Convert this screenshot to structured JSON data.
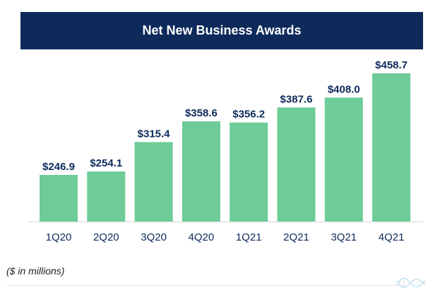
{
  "title": "Net New Business Awards",
  "footnote": "($ in millions)",
  "colors": {
    "header_bg": "#0d2a5b",
    "bar": "#6dcc97",
    "value_label": "#0d2a5b",
    "tick_label": "#0d2a5b"
  },
  "logo_icon": "dna-helix-icon",
  "chart_data": {
    "type": "bar",
    "title": "Net New Business Awards",
    "categories": [
      "1Q20",
      "2Q20",
      "3Q20",
      "4Q20",
      "1Q21",
      "2Q21",
      "3Q21",
      "4Q21"
    ],
    "values": [
      246.9,
      254.1,
      315.4,
      358.6,
      356.2,
      387.6,
      408.0,
      458.7
    ],
    "value_labels": [
      "$246.9",
      "$254.1",
      "$315.4",
      "$358.6",
      "$356.2",
      "$387.6",
      "$408.0",
      "$458.7"
    ],
    "xlabel": "",
    "ylabel": "",
    "ylim": [
      150,
      460
    ],
    "grid": false,
    "legend": "none"
  }
}
